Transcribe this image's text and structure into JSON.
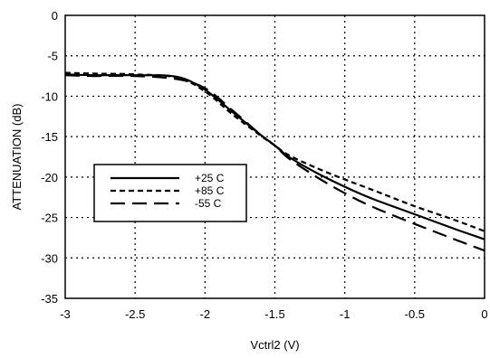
{
  "chart_data": {
    "type": "line",
    "xlabel": "Vctrl2 (V)",
    "ylabel": "ATTENUATION (dB)",
    "xlim": [
      -3,
      0
    ],
    "ylim": [
      -35,
      0
    ],
    "x_ticks": [
      -3,
      -2.5,
      -2,
      -1.5,
      -1,
      -0.5,
      0
    ],
    "x_tick_labels": [
      "-3",
      "-2.5",
      "-2",
      "-1.5",
      "-1",
      "-0.5",
      "0"
    ],
    "y_ticks": [
      0,
      -5,
      -10,
      -15,
      -20,
      -25,
      -30,
      -35
    ],
    "y_tick_labels": [
      "0",
      "-5",
      "-10",
      "-15",
      "-20",
      "-25",
      "-30",
      "-35"
    ],
    "grid": true,
    "legend_position": "center-left",
    "series": [
      {
        "name": "+25 C",
        "dash": "solid",
        "color": "#000000",
        "x": [
          -3,
          -2.8,
          -2.5,
          -2.2,
          -2.0,
          -1.8,
          -1.6,
          -1.5,
          -1.4,
          -1.2,
          -1.0,
          -0.8,
          -0.5,
          -0.2,
          0
        ],
        "y": [
          -7.3,
          -7.4,
          -7.4,
          -7.6,
          -9.2,
          -12.0,
          -14.8,
          -16.1,
          -17.5,
          -19.5,
          -21.2,
          -22.7,
          -24.6,
          -26.5,
          -27.7
        ]
      },
      {
        "name": "+85 C",
        "dash": "short",
        "color": "#000000",
        "x": [
          -3,
          -2.8,
          -2.5,
          -2.2,
          -2.0,
          -1.8,
          -1.6,
          -1.5,
          -1.4,
          -1.2,
          -1.0,
          -0.8,
          -0.5,
          -0.2,
          0
        ],
        "y": [
          -7.1,
          -7.2,
          -7.3,
          -7.7,
          -9.4,
          -12.3,
          -14.9,
          -16.1,
          -17.3,
          -18.9,
          -20.3,
          -21.6,
          -23.6,
          -25.4,
          -26.7
        ]
      },
      {
        "name": "-55 C",
        "dash": "long",
        "color": "#000000",
        "x": [
          -3,
          -2.8,
          -2.5,
          -2.2,
          -2.0,
          -1.8,
          -1.6,
          -1.5,
          -1.4,
          -1.2,
          -1.0,
          -0.8,
          -0.5,
          -0.2,
          0
        ],
        "y": [
          -7.4,
          -7.5,
          -7.5,
          -7.9,
          -9.0,
          -11.8,
          -14.8,
          -16.1,
          -17.7,
          -20.0,
          -22.0,
          -23.7,
          -25.8,
          -27.8,
          -29.1
        ]
      }
    ]
  }
}
